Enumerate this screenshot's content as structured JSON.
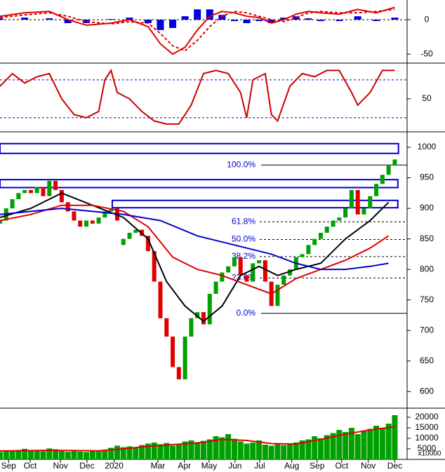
{
  "chart_data": [
    {
      "type": "line",
      "xlim": [
        0,
        66
      ],
      "ylim": [
        -61,
        28.6
      ],
      "yticks": [
        0,
        -50
      ],
      "hlines": [
        0
      ],
      "series": [
        {
          "type": "bar",
          "color": "#0000e0",
          "x": [
            0,
            4,
            8,
            11,
            14,
            18,
            21,
            24,
            26,
            28,
            30,
            32,
            34,
            36,
            38,
            40,
            42,
            44,
            46,
            48,
            50,
            52,
            55,
            58,
            61,
            64
          ],
          "values": [
            2,
            3,
            2,
            -5,
            -5,
            1,
            3,
            -5,
            -15,
            -12,
            5,
            15,
            15,
            7,
            -2,
            -5,
            -2,
            -5,
            3,
            5,
            2,
            -2,
            -2,
            5,
            -2,
            3
          ]
        },
        {
          "type": "line",
          "color": "#e00000",
          "dashed": true,
          "x": [
            0,
            4,
            8,
            11,
            14,
            18,
            21,
            24,
            26,
            28,
            30,
            32,
            34,
            36,
            38,
            40,
            42,
            44,
            46,
            48,
            50,
            52,
            55,
            58,
            61,
            64
          ],
          "values": [
            3,
            7,
            10,
            5,
            -3,
            -6,
            -3,
            -5,
            -20,
            -38,
            -45,
            -30,
            -10,
            5,
            12,
            10,
            5,
            0,
            -3,
            3,
            10,
            12,
            10,
            10,
            12,
            15
          ]
        },
        {
          "type": "line",
          "color": "#e00000",
          "x": [
            0,
            4,
            8,
            11,
            14,
            18,
            21,
            24,
            26,
            28,
            30,
            32,
            34,
            36,
            38,
            40,
            42,
            44,
            46,
            48,
            50,
            52,
            55,
            58,
            61,
            64
          ],
          "values": [
            5,
            10,
            12,
            0,
            -8,
            -5,
            0,
            -10,
            -35,
            -50,
            -40,
            -15,
            5,
            12,
            10,
            5,
            3,
            -5,
            0,
            8,
            12,
            10,
            8,
            15,
            10,
            18
          ]
        }
      ]
    },
    {
      "type": "line",
      "xlim": [
        0,
        66
      ],
      "ylim": [
        1,
        101
      ],
      "yticks": [
        50
      ],
      "hlines": [
        20,
        80
      ],
      "series": [
        {
          "type": "line",
          "color": "#cc0000",
          "x": [
            0,
            2,
            4,
            6,
            8,
            10,
            12,
            14,
            16,
            17,
            18,
            19,
            21,
            23,
            25,
            27,
            29,
            31,
            33,
            35,
            37,
            39,
            40,
            41,
            43,
            44,
            45,
            47,
            49,
            51,
            53,
            55,
            57,
            58,
            60,
            62,
            64
          ],
          "values": [
            70,
            90,
            75,
            85,
            90,
            50,
            25,
            20,
            30,
            80,
            95,
            60,
            50,
            30,
            15,
            10,
            10,
            40,
            90,
            95,
            90,
            60,
            20,
            80,
            90,
            25,
            15,
            70,
            90,
            85,
            95,
            95,
            60,
            40,
            60,
            95,
            95
          ]
        }
      ]
    },
    {
      "type": "candlestick",
      "xlim": [
        0,
        66
      ],
      "ylim": [
        575,
        1023
      ],
      "yticks": [
        600,
        650,
        700,
        750,
        800,
        850,
        900,
        950,
        1000
      ],
      "up_color": "#00a000",
      "down_color": "#e00000",
      "x": [
        0,
        1,
        2,
        3,
        4,
        5,
        6,
        7,
        8,
        9,
        10,
        11,
        12,
        13,
        14,
        15,
        16,
        17,
        18,
        19,
        20,
        21,
        22,
        23,
        24,
        25,
        26,
        27,
        28,
        29,
        30,
        31,
        32,
        33,
        34,
        35,
        36,
        37,
        38,
        39,
        40,
        41,
        42,
        43,
        44,
        45,
        46,
        47,
        48,
        49,
        50,
        51,
        52,
        53,
        54,
        55,
        56,
        57,
        58,
        59,
        60,
        61,
        62,
        63,
        64
      ],
      "open": [
        875,
        880,
        900,
        915,
        925,
        930,
        925,
        935,
        920,
        945,
        930,
        910,
        895,
        880,
        870,
        880,
        875,
        885,
        895,
        900,
        840,
        850,
        860,
        865,
        855,
        830,
        780,
        720,
        690,
        640,
        620,
        690,
        720,
        730,
        710,
        760,
        780,
        795,
        805,
        820,
        790,
        780,
        810,
        815,
        780,
        740,
        775,
        790,
        800,
        820,
        825,
        840,
        850,
        860,
        870,
        880,
        885,
        900,
        930,
        890,
        900,
        920,
        940,
        955,
        970
      ],
      "close": [
        880,
        900,
        915,
        925,
        930,
        925,
        935,
        920,
        945,
        930,
        910,
        895,
        880,
        870,
        880,
        875,
        885,
        895,
        900,
        880,
        850,
        860,
        865,
        855,
        830,
        780,
        720,
        690,
        640,
        620,
        690,
        720,
        730,
        710,
        760,
        780,
        795,
        805,
        820,
        790,
        780,
        810,
        815,
        780,
        740,
        775,
        790,
        800,
        820,
        825,
        840,
        850,
        860,
        870,
        880,
        885,
        900,
        930,
        890,
        900,
        920,
        940,
        955,
        970,
        980
      ],
      "series": [
        {
          "type": "line",
          "color": "#000000",
          "x": [
            0,
            5,
            10,
            15,
            20,
            24,
            27,
            30,
            33,
            36,
            39,
            42,
            45,
            48,
            52,
            56,
            60,
            63
          ],
          "values": [
            885,
            900,
            925,
            905,
            885,
            850,
            780,
            740,
            715,
            740,
            790,
            805,
            790,
            800,
            810,
            850,
            880,
            910
          ]
        },
        {
          "type": "line",
          "color": "#e00000",
          "x": [
            0,
            5,
            10,
            15,
            20,
            24,
            28,
            32,
            36,
            40,
            44,
            48,
            52,
            56,
            60,
            63
          ],
          "values": [
            880,
            890,
            905,
            905,
            895,
            870,
            820,
            800,
            790,
            775,
            760,
            785,
            800,
            815,
            835,
            855
          ]
        },
        {
          "type": "line",
          "color": "#0000cc",
          "x": [
            0,
            5,
            10,
            15,
            20,
            26,
            32,
            38,
            44,
            48,
            52,
            56,
            60,
            63
          ],
          "values": [
            890,
            895,
            900,
            895,
            890,
            880,
            855,
            840,
            825,
            810,
            800,
            800,
            805,
            810
          ]
        }
      ],
      "zones": [
        {
          "x": [
            0,
            64.6
          ],
          "y": [
            990,
            1006
          ]
        },
        {
          "x": [
            0,
            64.5
          ],
          "y": [
            934,
            947
          ]
        },
        {
          "x": [
            18.2,
            64.5
          ],
          "y": [
            901,
            913
          ]
        }
      ],
      "fib": [
        {
          "value": 971,
          "label": "100.0%"
        },
        {
          "value": 878,
          "label": "61.8%"
        },
        {
          "value": 849,
          "label": "50.0%"
        },
        {
          "value": 821,
          "label": "38.2%"
        },
        {
          "value": 786,
          "label": "23.6%"
        },
        {
          "value": 728,
          "label": "0.0%"
        }
      ]
    },
    {
      "type": "bar",
      "xlim": [
        0,
        66
      ],
      "ylim": [
        0,
        23333
      ],
      "yticks": [
        20000,
        15000,
        10000,
        5000
      ],
      "axis_note": "x10000",
      "color": "#00a000",
      "x": [
        0,
        1,
        2,
        3,
        4,
        5,
        6,
        7,
        8,
        9,
        10,
        11,
        12,
        13,
        14,
        15,
        16,
        17,
        18,
        19,
        20,
        21,
        22,
        23,
        24,
        25,
        26,
        27,
        28,
        29,
        30,
        31,
        32,
        33,
        34,
        35,
        36,
        37,
        38,
        39,
        40,
        41,
        42,
        43,
        44,
        45,
        46,
        47,
        48,
        49,
        50,
        51,
        52,
        53,
        54,
        55,
        56,
        57,
        58,
        59,
        60,
        61,
        62,
        63,
        64
      ],
      "values": [
        3500,
        4200,
        3800,
        4500,
        5000,
        4000,
        4300,
        3900,
        5200,
        4800,
        4400,
        3600,
        4100,
        3700,
        3500,
        4000,
        3800,
        4600,
        5500,
        6500,
        5800,
        6200,
        5600,
        6800,
        7500,
        8000,
        7200,
        7800,
        6500,
        7000,
        8500,
        9000,
        8200,
        8800,
        9500,
        11000,
        10500,
        12000,
        9800,
        8500,
        7500,
        8000,
        9000,
        7000,
        6500,
        7200,
        6800,
        7500,
        8000,
        9000,
        9500,
        11000,
        10000,
        11500,
        12500,
        14000,
        13000,
        15000,
        12000,
        13500,
        14500,
        16000,
        15000,
        17000,
        21000
      ],
      "series": [
        {
          "type": "line",
          "color": "#e00000",
          "x": [
            0,
            8,
            16,
            20,
            24,
            28,
            32,
            36,
            40,
            44,
            48,
            52,
            56,
            60,
            64
          ],
          "values": [
            4000,
            4300,
            4100,
            5000,
            6200,
            7000,
            7800,
            9500,
            9000,
            7500,
            7300,
            9500,
            12000,
            14000,
            15500
          ]
        }
      ],
      "xticks": [
        {
          "value": 1.4,
          "label": "Sep"
        },
        {
          "value": 4.9,
          "label": "Oct"
        },
        {
          "value": 9.8,
          "label": "Nov"
        },
        {
          "value": 14.1,
          "label": "Dec"
        },
        {
          "value": 18.5,
          "label": "2020"
        },
        {
          "value": 25.6,
          "label": "Mar"
        },
        {
          "value": 29.9,
          "label": "Apr"
        },
        {
          "value": 33.9,
          "label": "May"
        },
        {
          "value": 38.1,
          "label": "Jun"
        },
        {
          "value": 42.1,
          "label": "Jul"
        },
        {
          "value": 47.3,
          "label": "Aug"
        },
        {
          "value": 51.4,
          "label": "Sep"
        },
        {
          "value": 55.4,
          "label": "Oct"
        },
        {
          "value": 59.7,
          "label": "Nov"
        },
        {
          "value": 64,
          "label": "Dec"
        }
      ]
    }
  ]
}
